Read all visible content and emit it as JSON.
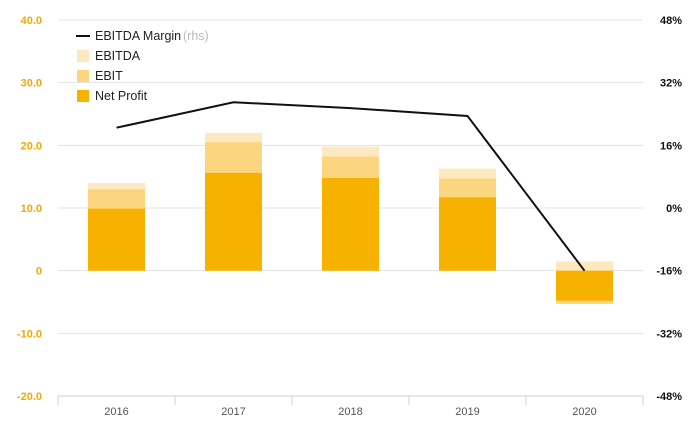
{
  "chart_data": {
    "type": "bar",
    "stacked": true,
    "categories": [
      "2016",
      "2017",
      "2018",
      "2019",
      "2020"
    ],
    "series": [
      {
        "name": "Net Profit",
        "values": [
          9.9,
          15.6,
          14.8,
          11.7,
          -4.8
        ],
        "color": "#f7b200"
      },
      {
        "name": "EBIT",
        "values": [
          13.0,
          20.5,
          18.2,
          14.7,
          -5.3
        ],
        "color": "#fbd57f"
      },
      {
        "name": "EBITDA",
        "values": [
          14.0,
          22.0,
          19.8,
          16.3,
          1.5
        ],
        "color": "#fde9bf"
      }
    ],
    "line_series": {
      "name": "EBITDA Margin",
      "note": "(rhs)",
      "values": [
        20.5,
        27.0,
        25.5,
        23.5,
        -16.0
      ],
      "color": "#111111"
    },
    "y_left": {
      "min": -20,
      "max": 40,
      "ticks": [
        "40.0",
        "30.0",
        "20.0",
        "10.0",
        "0",
        "-10.0",
        "-20.0"
      ],
      "color": "#f2a900"
    },
    "y_right": {
      "min": -48,
      "max": 48,
      "ticks": [
        "48%",
        "32%",
        "16%",
        "0%",
        "-16%",
        "-32%",
        "-48%"
      ],
      "color": "#111111"
    },
    "grid": true,
    "legend_position": "top-left"
  }
}
